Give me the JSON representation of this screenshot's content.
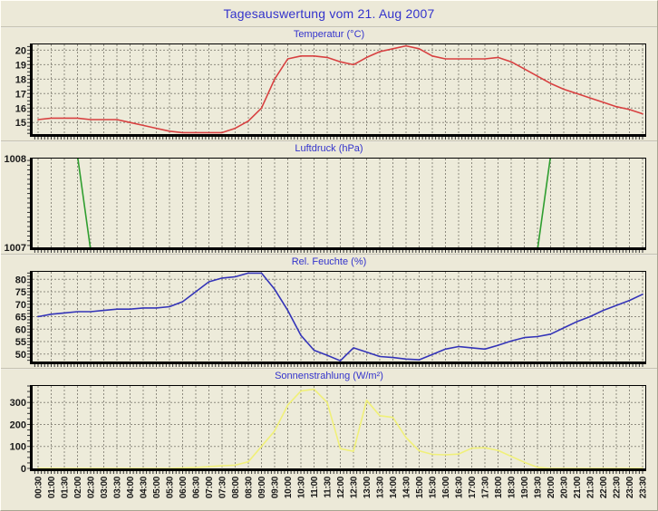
{
  "page": {
    "title": "Tagesauswertung vom 21. Aug 2007"
  },
  "style": {
    "page_bg": "#ece9d8",
    "plot_bg": "#edebda",
    "grid_color": "#8f8c80",
    "axis_color": "#000000",
    "title_color": "#3333cc",
    "tick_label_color": "#1a1a1a"
  },
  "times": [
    "00:30",
    "01:00",
    "01:30",
    "02:00",
    "02:30",
    "03:00",
    "03:30",
    "04:00",
    "04:30",
    "05:00",
    "05:30",
    "06:00",
    "06:30",
    "07:00",
    "07:30",
    "08:00",
    "08:30",
    "09:00",
    "09:30",
    "10:00",
    "10:30",
    "11:00",
    "11:30",
    "12:00",
    "12:30",
    "13:00",
    "13:30",
    "14:00",
    "14:30",
    "15:00",
    "15:30",
    "16:00",
    "16:30",
    "17:00",
    "17:30",
    "18:00",
    "18:30",
    "19:00",
    "19:30",
    "20:00",
    "20:30",
    "21:00",
    "21:30",
    "22:00",
    "22:30",
    "23:00",
    "23:30"
  ],
  "chart_data": [
    {
      "type": "line",
      "id": "temperature",
      "title": "Temperatur (°C)",
      "line_color": "#d84040",
      "ymin": 14.2,
      "ymax": 20.4,
      "yticks": [
        15,
        16,
        17,
        18,
        19,
        20
      ],
      "values": [
        15.2,
        15.3,
        15.3,
        15.3,
        15.2,
        15.2,
        15.2,
        15.0,
        14.8,
        14.6,
        14.4,
        14.3,
        14.3,
        14.3,
        14.3,
        14.6,
        15.1,
        16.0,
        18.0,
        19.4,
        19.6,
        19.6,
        19.5,
        19.2,
        19.0,
        19.5,
        19.9,
        20.1,
        20.3,
        20.1,
        19.6,
        19.4,
        19.4,
        19.4,
        19.4,
        19.5,
        19.2,
        18.7,
        18.2,
        17.7,
        17.3,
        17.0,
        16.7,
        16.4,
        16.1,
        15.9,
        15.6
      ]
    },
    {
      "type": "line",
      "id": "pressure",
      "title": "Luftdruck (hPa)",
      "line_color": "#2f9e2f",
      "ymin": 1007.03,
      "ymax": 1007.97,
      "yticks": [
        1007,
        1008
      ],
      "values": [
        1008,
        1008,
        1008,
        1008,
        1007,
        1007,
        1007,
        1007,
        1007,
        1007,
        1007,
        1007,
        1007,
        1007,
        1007,
        1007,
        1007,
        1007,
        1007,
        1007,
        1007,
        1007,
        1007,
        1007,
        1007,
        1007,
        1007,
        1007,
        1007,
        1007,
        1007,
        1007,
        1007,
        1007,
        1007,
        1007,
        1007,
        1007,
        1007,
        1008,
        1008,
        1008,
        1008,
        1008,
        1008,
        1008,
        1008
      ]
    },
    {
      "type": "line",
      "id": "humidity",
      "title": "Rel. Feuchte (%)",
      "line_color": "#3434b8",
      "ymin": 47,
      "ymax": 83,
      "yticks": [
        50,
        55,
        60,
        65,
        70,
        75,
        80
      ],
      "values": [
        65,
        66,
        66.5,
        67,
        67,
        67.5,
        68,
        68,
        68.5,
        68.5,
        69,
        71,
        75,
        79,
        80.5,
        81,
        82.5,
        82.5,
        76,
        67.5,
        57.5,
        51.5,
        49.5,
        47.3,
        52.5,
        50.8,
        49,
        48.6,
        48,
        47.7,
        49.8,
        52,
        53,
        52.5,
        52,
        53.5,
        55.2,
        56.6,
        57,
        58,
        60.5,
        63,
        65,
        67.5,
        69.5,
        71.5,
        74
      ]
    },
    {
      "type": "line",
      "id": "solar",
      "title": "Sonnenstrahlung (W/m²)",
      "line_color": "#f0f078",
      "ymin": 0,
      "ymax": 375,
      "yticks": [
        0,
        100,
        200,
        300
      ],
      "values": [
        0,
        0,
        0,
        0,
        0,
        0,
        0,
        0,
        0,
        0,
        0,
        2,
        4,
        8,
        12,
        15,
        30,
        100,
        170,
        288,
        352,
        360,
        300,
        90,
        78,
        310,
        240,
        232,
        140,
        80,
        64,
        62,
        65,
        92,
        94,
        82,
        55,
        28,
        5,
        0,
        0,
        0,
        0,
        0,
        0,
        0,
        0
      ]
    }
  ]
}
